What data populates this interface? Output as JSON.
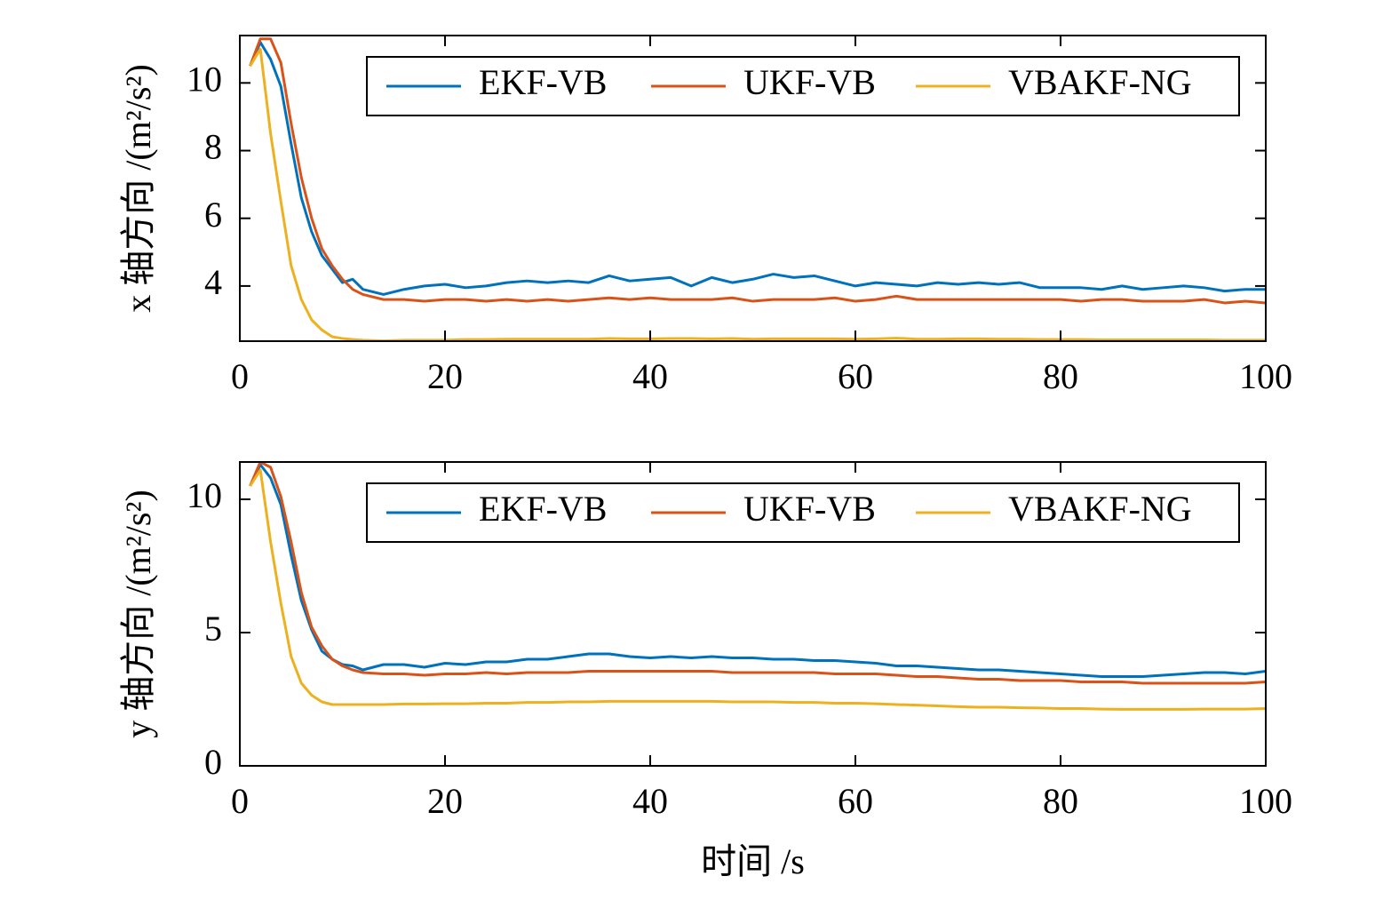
{
  "chart_data": [
    {
      "type": "line",
      "ylabel": "x 轴方向 /(m²/s²)",
      "x": [
        1,
        2,
        3,
        4,
        5,
        6,
        7,
        8,
        9,
        10,
        11,
        12,
        14,
        16,
        18,
        20,
        22,
        24,
        26,
        28,
        30,
        32,
        34,
        36,
        38,
        40,
        42,
        44,
        46,
        48,
        50,
        52,
        54,
        56,
        58,
        60,
        62,
        64,
        66,
        68,
        70,
        72,
        74,
        76,
        78,
        80,
        82,
        84,
        86,
        88,
        90,
        92,
        94,
        96,
        98,
        100
      ],
      "series": [
        {
          "name": "EKF-VB",
          "color": "#0072BD",
          "values": [
            10.5,
            11.2,
            10.7,
            9.9,
            8.2,
            6.6,
            5.6,
            4.9,
            4.5,
            4.1,
            4.2,
            3.9,
            3.75,
            3.9,
            4.0,
            4.05,
            3.95,
            4.0,
            4.1,
            4.15,
            4.1,
            4.15,
            4.1,
            4.3,
            4.15,
            4.2,
            4.25,
            4.0,
            4.25,
            4.1,
            4.2,
            4.35,
            4.25,
            4.3,
            4.15,
            4.0,
            4.1,
            4.05,
            4.0,
            4.1,
            4.05,
            4.1,
            4.05,
            4.1,
            3.95,
            3.95,
            3.95,
            3.9,
            4.0,
            3.9,
            3.95,
            4.0,
            3.95,
            3.85,
            3.9,
            3.9
          ]
        },
        {
          "name": "UKF-VB",
          "color": "#D95319",
          "values": [
            10.5,
            11.3,
            11.3,
            10.6,
            8.8,
            7.2,
            6.0,
            5.1,
            4.6,
            4.2,
            3.9,
            3.75,
            3.6,
            3.6,
            3.55,
            3.6,
            3.6,
            3.55,
            3.6,
            3.55,
            3.6,
            3.55,
            3.6,
            3.65,
            3.6,
            3.65,
            3.6,
            3.6,
            3.6,
            3.65,
            3.55,
            3.6,
            3.6,
            3.6,
            3.65,
            3.55,
            3.6,
            3.7,
            3.6,
            3.6,
            3.6,
            3.6,
            3.6,
            3.6,
            3.6,
            3.6,
            3.55,
            3.6,
            3.6,
            3.55,
            3.55,
            3.55,
            3.6,
            3.5,
            3.55,
            3.5
          ]
        },
        {
          "name": "VBAKF-NG",
          "color": "#EDB120",
          "values": [
            10.5,
            11.0,
            8.5,
            6.5,
            4.6,
            3.6,
            3.0,
            2.7,
            2.5,
            2.45,
            2.42,
            2.4,
            2.38,
            2.4,
            2.4,
            2.4,
            2.42,
            2.42,
            2.43,
            2.43,
            2.43,
            2.43,
            2.43,
            2.45,
            2.44,
            2.44,
            2.45,
            2.45,
            2.44,
            2.45,
            2.43,
            2.44,
            2.44,
            2.44,
            2.44,
            2.43,
            2.44,
            2.46,
            2.43,
            2.43,
            2.44,
            2.44,
            2.43,
            2.43,
            2.42,
            2.42,
            2.42,
            2.41,
            2.41,
            2.41,
            2.41,
            2.41,
            2.41,
            2.4,
            2.4,
            2.4
          ]
        }
      ],
      "xlim": [
        0,
        100
      ],
      "ylim": [
        2.37,
        11.4
      ],
      "xticks": [
        0,
        20,
        40,
        60,
        80,
        100
      ],
      "yticks": [
        4,
        6,
        8,
        10
      ],
      "legend": "top-right"
    },
    {
      "type": "line",
      "ylabel": "y 轴方向 /(m²/s²)",
      "xlabel": "时间 /s",
      "x": [
        1,
        2,
        3,
        4,
        5,
        6,
        7,
        8,
        9,
        10,
        11,
        12,
        14,
        16,
        18,
        20,
        22,
        24,
        26,
        28,
        30,
        32,
        34,
        36,
        38,
        40,
        42,
        44,
        46,
        48,
        50,
        52,
        54,
        56,
        58,
        60,
        62,
        64,
        66,
        68,
        70,
        72,
        74,
        76,
        78,
        80,
        82,
        84,
        86,
        88,
        90,
        92,
        94,
        96,
        98,
        100
      ],
      "series": [
        {
          "name": "EKF-VB",
          "color": "#0072BD",
          "values": [
            10.5,
            11.3,
            10.8,
            9.8,
            7.9,
            6.2,
            5.1,
            4.3,
            4.0,
            3.8,
            3.75,
            3.6,
            3.8,
            3.8,
            3.7,
            3.85,
            3.8,
            3.9,
            3.9,
            4.0,
            4.0,
            4.1,
            4.2,
            4.2,
            4.1,
            4.05,
            4.1,
            4.05,
            4.1,
            4.05,
            4.05,
            4.0,
            4.0,
            3.95,
            3.95,
            3.9,
            3.85,
            3.75,
            3.75,
            3.7,
            3.65,
            3.6,
            3.6,
            3.55,
            3.5,
            3.45,
            3.4,
            3.35,
            3.35,
            3.35,
            3.4,
            3.45,
            3.5,
            3.5,
            3.45,
            3.55
          ]
        },
        {
          "name": "UKF-VB",
          "color": "#D95319",
          "values": [
            10.5,
            11.4,
            11.2,
            10.1,
            8.4,
            6.5,
            5.2,
            4.5,
            4.0,
            3.75,
            3.6,
            3.5,
            3.45,
            3.45,
            3.4,
            3.45,
            3.45,
            3.5,
            3.45,
            3.5,
            3.5,
            3.5,
            3.55,
            3.55,
            3.55,
            3.55,
            3.55,
            3.55,
            3.55,
            3.5,
            3.5,
            3.5,
            3.5,
            3.5,
            3.45,
            3.45,
            3.45,
            3.4,
            3.35,
            3.35,
            3.3,
            3.25,
            3.25,
            3.2,
            3.2,
            3.2,
            3.15,
            3.15,
            3.15,
            3.1,
            3.1,
            3.1,
            3.1,
            3.1,
            3.1,
            3.15
          ]
        },
        {
          "name": "VBAKF-NG",
          "color": "#EDB120",
          "values": [
            10.5,
            11.1,
            8.4,
            6.1,
            4.1,
            3.1,
            2.65,
            2.4,
            2.3,
            2.3,
            2.3,
            2.3,
            2.3,
            2.32,
            2.32,
            2.33,
            2.33,
            2.35,
            2.35,
            2.38,
            2.38,
            2.4,
            2.4,
            2.42,
            2.42,
            2.42,
            2.42,
            2.42,
            2.42,
            2.4,
            2.4,
            2.4,
            2.38,
            2.38,
            2.35,
            2.35,
            2.33,
            2.3,
            2.28,
            2.25,
            2.22,
            2.2,
            2.2,
            2.18,
            2.17,
            2.15,
            2.15,
            2.13,
            2.12,
            2.12,
            2.12,
            2.12,
            2.13,
            2.13,
            2.13,
            2.15
          ]
        }
      ],
      "xlim": [
        0,
        100
      ],
      "ylim": [
        0,
        11.4
      ],
      "xticks": [
        0,
        20,
        40,
        60,
        80,
        100
      ],
      "yticks": [
        0,
        5,
        10
      ],
      "legend": "top-right"
    }
  ]
}
